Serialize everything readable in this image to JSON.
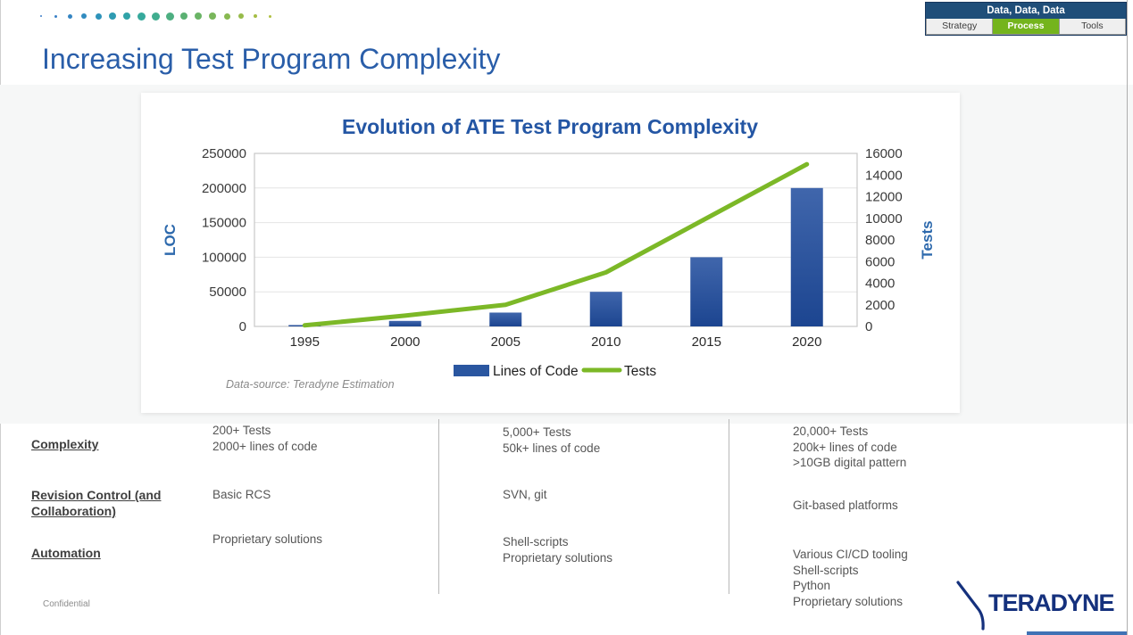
{
  "slide": {
    "title": "Increasing Test Program Complexity",
    "confidential": "Confidential",
    "logo_text": "TERADYNE"
  },
  "nav_box": {
    "header": "Data, Data, Data",
    "header_color": "#1f4e79",
    "active_color": "#74b41c",
    "tabs": [
      {
        "label": "Strategy",
        "active": false
      },
      {
        "label": "Process",
        "active": true
      },
      {
        "label": "Tools",
        "active": false
      }
    ]
  },
  "decor_dots": [
    {
      "c": "#3d7ec9",
      "s": 2
    },
    {
      "c": "#3981c6",
      "s": 3
    },
    {
      "c": "#3585c3",
      "s": 5
    },
    {
      "c": "#318bbf",
      "s": 6
    },
    {
      "c": "#2e93ba",
      "s": 7
    },
    {
      "c": "#2e9bb2",
      "s": 8
    },
    {
      "c": "#30a3a8",
      "s": 8
    },
    {
      "c": "#36a99c",
      "s": 9
    },
    {
      "c": "#40ad8f",
      "s": 9
    },
    {
      "c": "#4daf81",
      "s": 9
    },
    {
      "c": "#5bb173",
      "s": 8
    },
    {
      "c": "#6ab466",
      "s": 8
    },
    {
      "c": "#79b65b",
      "s": 8
    },
    {
      "c": "#88b951",
      "s": 7
    },
    {
      "c": "#97bb4a",
      "s": 6
    },
    {
      "c": "#a5bd44",
      "s": 4
    },
    {
      "c": "#b0c040",
      "s": 3
    }
  ],
  "chart_data": {
    "type": "bar+line",
    "title": "Evolution of ATE Test Program Complexity",
    "categories": [
      "1995",
      "2000",
      "2005",
      "2010",
      "2015",
      "2020"
    ],
    "series": [
      {
        "name": "Lines of Code",
        "type": "bar",
        "axis": "left",
        "values": [
          2000,
          8000,
          20000,
          50000,
          100000,
          200000
        ],
        "color": "#2a56a0",
        "color_top": "#4066ac",
        "color_bottom": "#1c4590"
      },
      {
        "name": "Tests",
        "type": "line",
        "axis": "right",
        "values": [
          100,
          1000,
          2000,
          5000,
          10000,
          15000
        ],
        "color": "#7cb827"
      }
    ],
    "left_axis": {
      "label": "LOC",
      "min": 0,
      "max": 250000,
      "step": 50000
    },
    "right_axis": {
      "label": "Tests",
      "min": 0,
      "max": 16000,
      "step": 2000
    },
    "grid": true,
    "legend_position": "bottom",
    "source_note": "Data-source: Teradyne Estimation"
  },
  "table": {
    "row_labels": [
      "Complexity",
      "Revision Control (and Collaboration)",
      "Automation"
    ],
    "columns": [
      {
        "cells": [
          "200+ Tests\n2000+ lines of code",
          "Basic RCS",
          "Proprietary solutions"
        ]
      },
      {
        "cells": [
          "5,000+ Tests\n50k+ lines of code",
          "SVN, git",
          "Shell-scripts\nProprietary solutions"
        ]
      },
      {
        "cells": [
          "20,000+ Tests\n200k+ lines of code\n>10GB digital pattern",
          "Git-based platforms",
          "Various CI/CD tooling\nShell-scripts\nPython\nProprietary solutions"
        ]
      }
    ]
  }
}
